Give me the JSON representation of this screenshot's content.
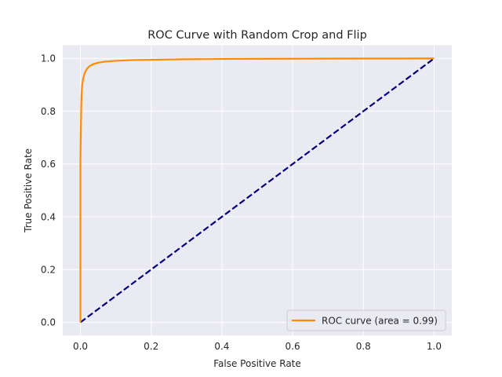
{
  "chart_data": {
    "type": "line",
    "title": "ROC Curve with Random Crop and Flip",
    "xlabel": "False Positive Rate",
    "ylabel": "True Positive Rate",
    "xlim": [
      -0.05,
      1.05
    ],
    "ylim": [
      -0.05,
      1.05
    ],
    "xticks": [
      0.0,
      0.2,
      0.4,
      0.6,
      0.8,
      1.0
    ],
    "xtick_labels": [
      "0.0",
      "0.2",
      "0.4",
      "0.6",
      "0.8",
      "1.0"
    ],
    "yticks": [
      0.0,
      0.2,
      0.4,
      0.6,
      0.8,
      1.0
    ],
    "ytick_labels": [
      "0.0",
      "0.2",
      "0.4",
      "0.6",
      "0.8",
      "1.0"
    ],
    "grid": true,
    "legend": {
      "placement": "lower-right"
    },
    "series": [
      {
        "name": "ROC curve (area = 0.99)",
        "color": "#ff8c00",
        "style": "solid",
        "x": [
          0.0,
          0.0,
          0.002,
          0.003,
          0.005,
          0.008,
          0.012,
          0.018,
          0.025,
          0.035,
          0.05,
          0.07,
          0.1,
          0.15,
          0.2,
          0.3,
          0.4,
          0.5,
          0.6,
          0.7,
          0.8,
          0.9,
          1.0
        ],
        "y": [
          0.0,
          0.62,
          0.8,
          0.86,
          0.9,
          0.925,
          0.945,
          0.96,
          0.97,
          0.978,
          0.984,
          0.988,
          0.991,
          0.994,
          0.995,
          0.997,
          0.998,
          0.9985,
          0.999,
          0.9993,
          0.9996,
          0.9998,
          1.0
        ]
      },
      {
        "name": "",
        "color": "#000080",
        "style": "dashed",
        "x": [
          0.0,
          1.0
        ],
        "y": [
          0.0,
          1.0
        ]
      }
    ]
  }
}
